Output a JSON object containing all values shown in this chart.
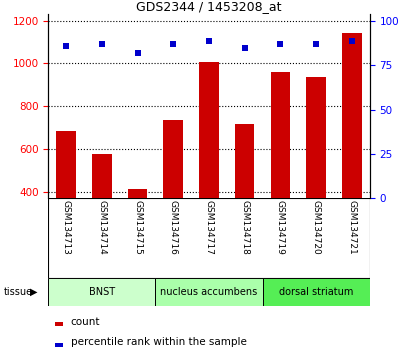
{
  "title": "GDS2344 / 1453208_at",
  "samples": [
    "GSM134713",
    "GSM134714",
    "GSM134715",
    "GSM134716",
    "GSM134717",
    "GSM134718",
    "GSM134719",
    "GSM134720",
    "GSM134721"
  ],
  "counts": [
    685,
    578,
    415,
    735,
    1005,
    715,
    958,
    935,
    1140
  ],
  "percentiles": [
    86,
    87,
    82,
    87,
    89,
    85,
    87,
    87,
    89
  ],
  "ylim_left": [
    370,
    1230
  ],
  "ylim_right": [
    0,
    104
  ],
  "yticks_left": [
    400,
    600,
    800,
    1000,
    1200
  ],
  "yticks_right": [
    0,
    25,
    50,
    75,
    100
  ],
  "groups": [
    {
      "label": "BNST",
      "start": 0,
      "end": 3,
      "color": "#ccffcc"
    },
    {
      "label": "nucleus accumbens",
      "start": 3,
      "end": 6,
      "color": "#aaffaa"
    },
    {
      "label": "dorsal striatum",
      "start": 6,
      "end": 9,
      "color": "#55ee55"
    }
  ],
  "bar_color": "#cc0000",
  "dot_color": "#0000cc",
  "tissue_label": "tissue",
  "legend_count": "count",
  "legend_percentile": "percentile rank within the sample",
  "bar_width": 0.55,
  "xlabel_area_color": "#c8c8c8"
}
